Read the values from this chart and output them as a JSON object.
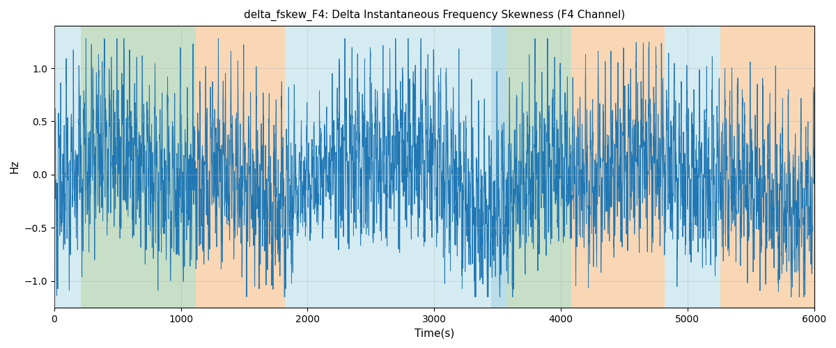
{
  "title": "delta_fskew_F4: Delta Instantaneous Frequency Skewness (F4 Channel)",
  "xlabel": "Time(s)",
  "ylabel": "Hz",
  "xlim": [
    0,
    6000
  ],
  "ylim": [
    -1.25,
    1.4
  ],
  "figsize": [
    12.0,
    5.0
  ],
  "dpi": 100,
  "line_color": "#1f77b4",
  "line_width": 0.7,
  "background_regions": [
    {
      "xmin": 0,
      "xmax": 210,
      "color": "#add8e6",
      "alpha": 0.5
    },
    {
      "xmin": 210,
      "xmax": 1120,
      "color": "#90c090",
      "alpha": 0.5
    },
    {
      "xmin": 1120,
      "xmax": 1820,
      "color": "#f4b06a",
      "alpha": 0.5
    },
    {
      "xmin": 1820,
      "xmax": 3450,
      "color": "#add8e6",
      "alpha": 0.5
    },
    {
      "xmin": 3450,
      "xmax": 3570,
      "color": "#add8e6",
      "alpha": 0.85
    },
    {
      "xmin": 3570,
      "xmax": 4080,
      "color": "#90c090",
      "alpha": 0.5
    },
    {
      "xmin": 4080,
      "xmax": 4820,
      "color": "#f4b06a",
      "alpha": 0.5
    },
    {
      "xmin": 4820,
      "xmax": 5260,
      "color": "#add8e6",
      "alpha": 0.5
    },
    {
      "xmin": 5260,
      "xmax": 6000,
      "color": "#f4b06a",
      "alpha": 0.5
    }
  ],
  "grid_color": "#b0b0b0",
  "grid_alpha": 0.6,
  "seed": 12345,
  "n_points": 6000
}
